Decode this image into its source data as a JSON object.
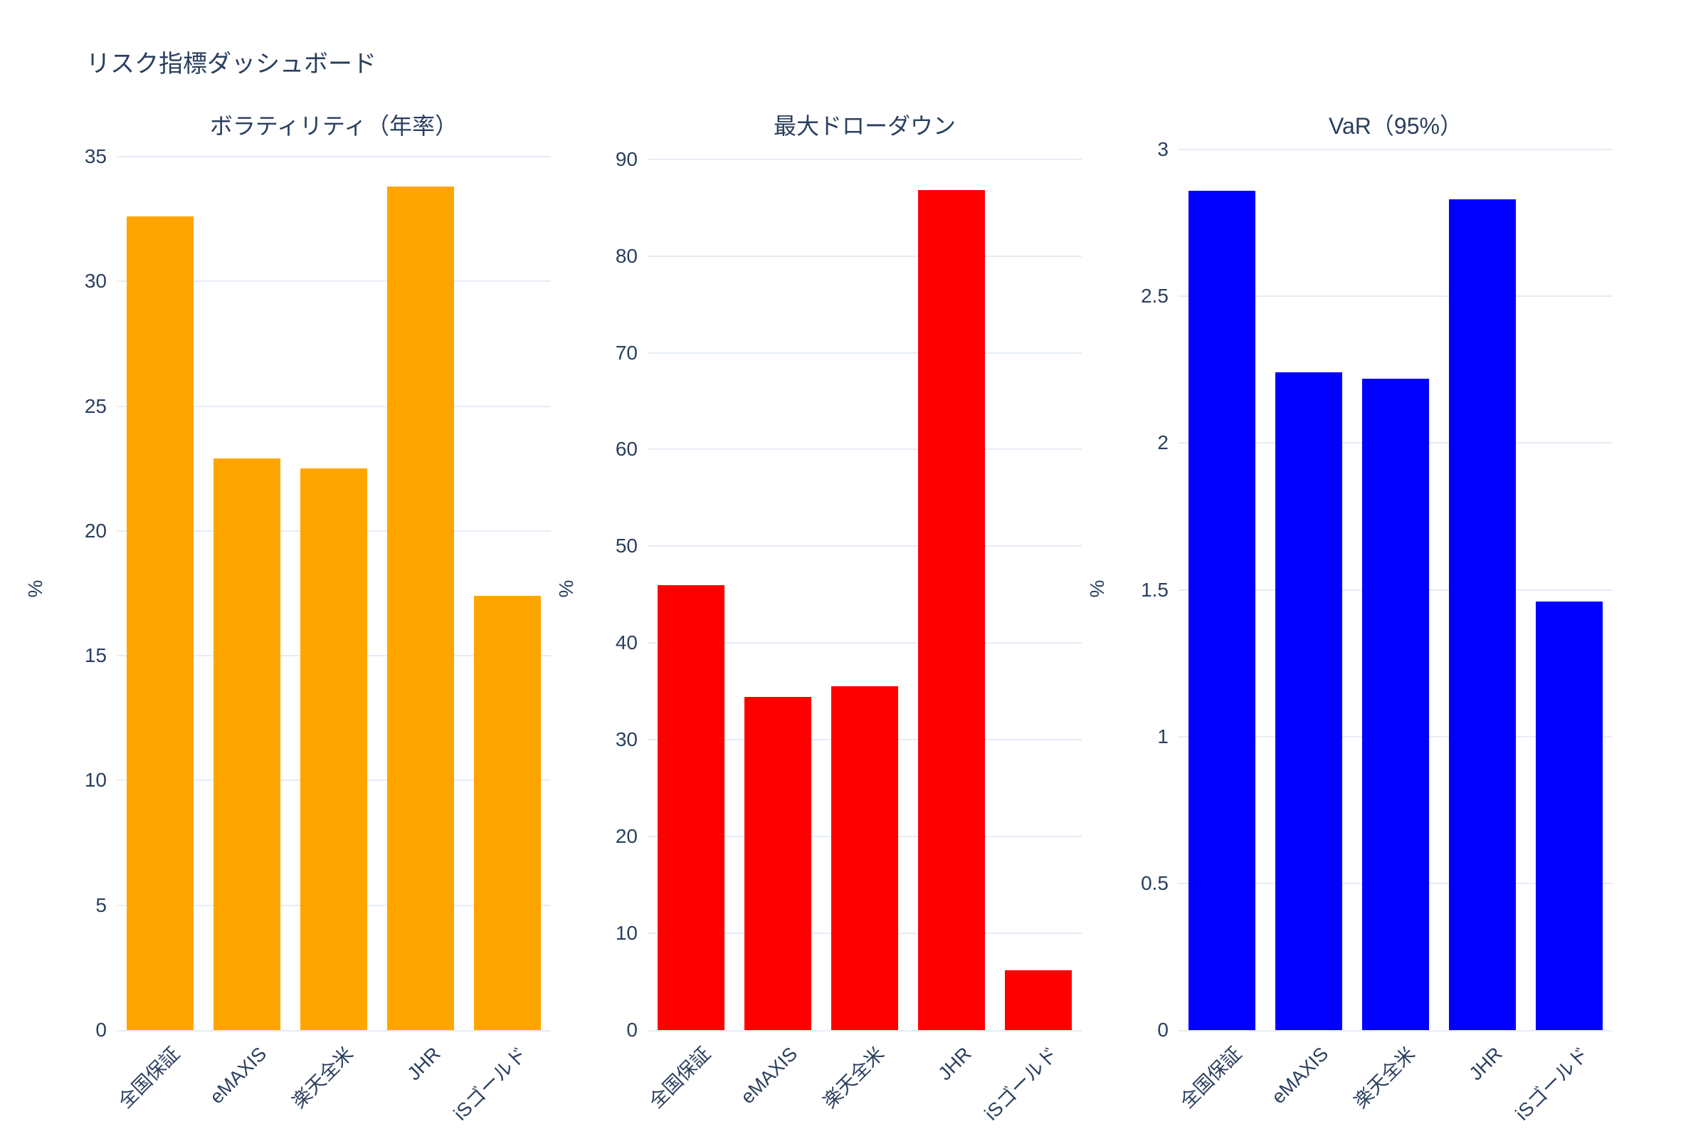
{
  "page_title": "リスク指標ダッシュボード",
  "theme": {
    "text_color": "#2a3f5f",
    "grid_color": "#e5ecf6",
    "background_color": "#ffffff"
  },
  "chart_data": [
    {
      "type": "bar",
      "title": "ボラティリティ（年率）",
      "ylabel": "%",
      "xlabel": "",
      "categories": [
        "全国保証",
        "eMAXIS",
        "楽天全米",
        "JHR",
        "iSゴールド"
      ],
      "values": [
        32.6,
        22.9,
        22.5,
        33.8,
        17.4
      ],
      "bar_color": "#ffa500",
      "yticks": [
        0,
        5,
        10,
        15,
        20,
        25,
        30,
        35
      ],
      "ylim": [
        0,
        35.4
      ],
      "grid": true,
      "legend": false
    },
    {
      "type": "bar",
      "title": "最大ドローダウン",
      "ylabel": "%",
      "xlabel": "",
      "categories": [
        "全国保証",
        "eMAXIS",
        "楽天全米",
        "JHR",
        "iSゴールド"
      ],
      "values": [
        46.0,
        34.4,
        35.5,
        86.8,
        6.2
      ],
      "bar_color": "#ff0000",
      "yticks": [
        0,
        10,
        20,
        30,
        40,
        50,
        60,
        70,
        80,
        90
      ],
      "ylim": [
        0,
        91.3
      ],
      "grid": true,
      "legend": false
    },
    {
      "type": "bar",
      "title": "VaR（95%）",
      "ylabel": "%",
      "xlabel": "",
      "categories": [
        "全国保証",
        "eMAXIS",
        "楽天全米",
        "JHR",
        "iSゴールド"
      ],
      "values": [
        2.86,
        2.24,
        2.22,
        2.83,
        1.46
      ],
      "bar_color": "#0000ff",
      "yticks": [
        0,
        0.5,
        1,
        1.5,
        2,
        2.5,
        3
      ],
      "ylim": [
        0,
        3.01
      ],
      "grid": true,
      "legend": false
    }
  ]
}
